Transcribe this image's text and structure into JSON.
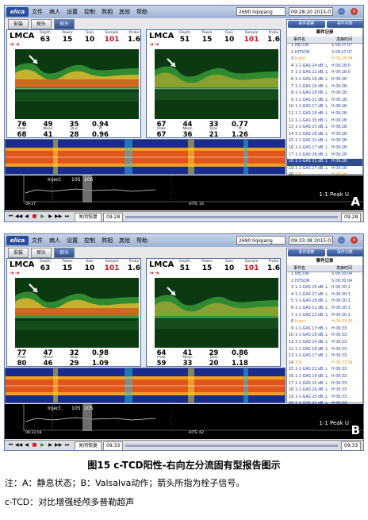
{
  "figure": {
    "caption": "图15   c-TCD阳性-右向左分流固有型报告图示",
    "note_line1": "注：A：静息状态；B：Valsalva动作；箭头所指为栓子信号。",
    "note_line2": "c-TCD：对比增强经颅多普勒超声"
  },
  "colors": {
    "accent": "#2f4d8e",
    "alert": "#c2121a",
    "highlight": "#e49a10"
  },
  "panels": [
    {
      "letter": "A",
      "logo": "elica",
      "menu": [
        "文件",
        "病人",
        "设置",
        "控制",
        "熬相",
        "其他",
        "帮助"
      ],
      "patient_id": "2690 liqiqiang",
      "time": "09:28:20 2015-07-08",
      "toolbar": [
        "安装",
        "探头",
        "探头"
      ],
      "side_buttons": [
        "事件观察",
        "事件列表"
      ],
      "events_title": "事件记录",
      "events_col_name": "事件名",
      "events_col_time": "发病时间",
      "events": [
        {
          "n": "1",
          "name": "RECON",
          "time": "S 09:27:07"
        },
        {
          "n": "2",
          "name": "HITSON",
          "time": "S 09:27:07"
        },
        {
          "n": "3",
          "name": "Inject",
          "time": "H 09:28:04"
        },
        {
          "n": "4",
          "name": "1-1-GAS 24 dB. L",
          "time": "H 09:28:0"
        },
        {
          "n": "5",
          "name": "1-1-GAS 22 dB. L",
          "time": "H 09:28:0"
        },
        {
          "n": "6",
          "name": "1-1-GAS 16 dB. L",
          "time": "H 09:28:"
        },
        {
          "n": "7",
          "name": "1-1-GAS 16 dB. L",
          "time": "H 09:28:"
        },
        {
          "n": "8",
          "name": "1-1-GAS 18 dB. L",
          "time": "H 09:28:"
        },
        {
          "n": "9",
          "name": "1-1-GAS 21 dB. L",
          "time": "H 09:28:"
        },
        {
          "n": "10",
          "name": "1-1-GAS 17 dB. L",
          "time": "H 09:28:"
        },
        {
          "n": "11",
          "name": "1-1-GAS 18 dB. L",
          "time": "H 09:28:"
        },
        {
          "n": "12",
          "name": "1-1-GAS 30 dB. L",
          "time": "H 09:28:"
        },
        {
          "n": "13",
          "name": "1-1-GAS 25 dB. L",
          "time": "H 09:28:"
        },
        {
          "n": "14",
          "name": "1-1-GAS 26 dB. L",
          "time": "H 09:28:"
        },
        {
          "n": "15",
          "name": "1-1-GAS 22 dB. L",
          "time": "H 09:28:"
        },
        {
          "n": "16",
          "name": "1-1-GAS 17 dB. L",
          "time": "H 09:28:"
        },
        {
          "n": "17",
          "name": "1-1-GAS 26 dB. L",
          "time": "H 09:28:"
        },
        {
          "n": "18",
          "name": "1-1-GAS 21 dB. L",
          "time": "H 09:28:"
        },
        {
          "n": "19",
          "name": "1-1-GAS 27 dB. L",
          "time": "H 09:28:"
        },
        {
          "n": "20",
          "name": "10S",
          "time": "H 09:28:"
        }
      ],
      "selected_event": 17,
      "channels": [
        {
          "title": "LMCA",
          "params": [
            {
              "label": "Depth",
              "value": "63"
            },
            {
              "label": "Power",
              "value": "15"
            },
            {
              "label": "Gain",
              "value": "10"
            },
            {
              "label": "Sample",
              "value": "101",
              "red": true
            },
            {
              "label": "Probe",
              "value": "1.6"
            }
          ],
          "readout_top": [
            "76",
            "49",
            "35",
            "0.94"
          ],
          "readout_labels": [
            "Peak",
            "Mean",
            "Dias",
            "PI"
          ],
          "readout_bottom": [
            "68",
            "41",
            "28",
            "0.96"
          ]
        },
        {
          "title": "LMCA",
          "params": [
            {
              "label": "Depth",
              "value": "51"
            },
            {
              "label": "Power",
              "value": "15"
            },
            {
              "label": "Gain",
              "value": "10"
            },
            {
              "label": "Sample",
              "value": "101",
              "red": true
            },
            {
              "label": "Probe",
              "value": "1.6"
            }
          ],
          "readout_top": [
            "67",
            "44",
            "33",
            "0.77"
          ],
          "readout_labels": [
            "Peak",
            "Mean",
            "Dias",
            "PI"
          ],
          "readout_bottom": [
            "67",
            "36",
            "21",
            "1.26"
          ]
        }
      ],
      "trend_label": "Inject",
      "trend_seg1": "10S",
      "trend_seg2": "20S",
      "peak_label": "1-1 Peak U",
      "timeline_left": "09:27",
      "timeline_mid": "HITS: 24",
      "play_label": "关闭恢复",
      "play_time_left": "09:28",
      "play_time_right": "09:28"
    },
    {
      "letter": "B",
      "logo": "elica",
      "menu": [
        "文件",
        "病人",
        "设置",
        "控制",
        "熬相",
        "其他",
        "帮助"
      ],
      "patient_id": "2690 liqiqiang",
      "time": "09:33:38 2015-07-08",
      "toolbar": [
        "安装",
        "探头",
        "探头"
      ],
      "side_buttons": [
        "事件观察",
        "事件列表"
      ],
      "events_title": "事件记录",
      "events_col_name": "事件名",
      "events_col_time": "发病时间",
      "events": [
        {
          "n": "1",
          "name": "RECON",
          "time": "S 09:30:04"
        },
        {
          "n": "2",
          "name": "HITSON",
          "time": "S 09:30:04"
        },
        {
          "n": "3",
          "name": "1-1-GAS 26 dB. L",
          "time": "H 09:30:1"
        },
        {
          "n": "4",
          "name": "1-1-GAS 27 dB. L",
          "time": "H 09:30:1"
        },
        {
          "n": "5",
          "name": "1-1-GAS 29 dB. L",
          "time": "H 09:30:1"
        },
        {
          "n": "6",
          "name": "1-1-GAS 11 dB. L",
          "time": "H 09:30:1"
        },
        {
          "n": "7",
          "name": "1-1-GAS 13 dB. L",
          "time": "H 09:30:1"
        },
        {
          "n": "8",
          "name": "Inject",
          "time": "H 09:33:26"
        },
        {
          "n": "9",
          "name": "1-1-GAS 13 dB. L",
          "time": "H 09:33:"
        },
        {
          "n": "10",
          "name": "1-1-GAS 18 dB. L",
          "time": "H 09:33:"
        },
        {
          "n": "11",
          "name": "1-1-GAS 24 dB. L",
          "time": "H 09:33:"
        },
        {
          "n": "12",
          "name": "1-1-GAS 18 dB. L",
          "time": "H 09:33:"
        },
        {
          "n": "13",
          "name": "1-1-GAS 17 dB. L",
          "time": "H 09:33:"
        },
        {
          "n": "14",
          "name": "10S",
          "time": "H 09:33:34"
        },
        {
          "n": "15",
          "name": "1-1-GAS 22 dB. L",
          "time": "H 09:33:"
        },
        {
          "n": "16",
          "name": "1-1-GAS 19 dB. L",
          "time": "H 09:33:"
        },
        {
          "n": "17",
          "name": "1-1-GAS 20 dB. L",
          "time": "H 09:33:"
        },
        {
          "n": "18",
          "name": "1-1-GAS 26 dB. L",
          "time": "H 09:33:"
        },
        {
          "n": "19",
          "name": "1-1-GAS 25 dB. L",
          "time": "H 09:33:"
        },
        {
          "n": "20",
          "name": "1-1-GAS 22 dB. L",
          "time": "H 09:33:"
        }
      ],
      "selected_event": -1,
      "channels": [
        {
          "title": "LMCA",
          "params": [
            {
              "label": "Depth",
              "value": "63"
            },
            {
              "label": "Power",
              "value": "15"
            },
            {
              "label": "Gain",
              "value": "10"
            },
            {
              "label": "Sample",
              "value": "101",
              "red": true
            },
            {
              "label": "Probe",
              "value": "1.6"
            }
          ],
          "readout_top": [
            "77",
            "47",
            "32",
            "0.98"
          ],
          "readout_labels": [
            "Peak",
            "Mean",
            "Dias",
            "PI"
          ],
          "readout_bottom": [
            "80",
            "46",
            "29",
            "1.09"
          ]
        },
        {
          "title": "LMCA",
          "params": [
            {
              "label": "Depth",
              "value": "51"
            },
            {
              "label": "Power",
              "value": "15"
            },
            {
              "label": "Gain",
              "value": "10"
            },
            {
              "label": "Sample",
              "value": "101",
              "red": true
            },
            {
              "label": "Probe",
              "value": "1.6"
            }
          ],
          "readout_top": [
            "64",
            "41",
            "29",
            "0.86"
          ],
          "readout_labels": [
            "Peak",
            "Mean",
            "Dias",
            "PI"
          ],
          "readout_bottom": [
            "59",
            "33",
            "20",
            "1.18"
          ]
        }
      ],
      "trend_label": "Inject",
      "trend_seg1": "10S",
      "trend_seg2": "20S",
      "peak_label": "1-1 Peak U",
      "timeline_left": "09:33:18",
      "timeline_mid": "HITS: 62",
      "play_label": "关闭恢复",
      "play_time_left": "09:33",
      "play_time_right": "09:33"
    }
  ]
}
